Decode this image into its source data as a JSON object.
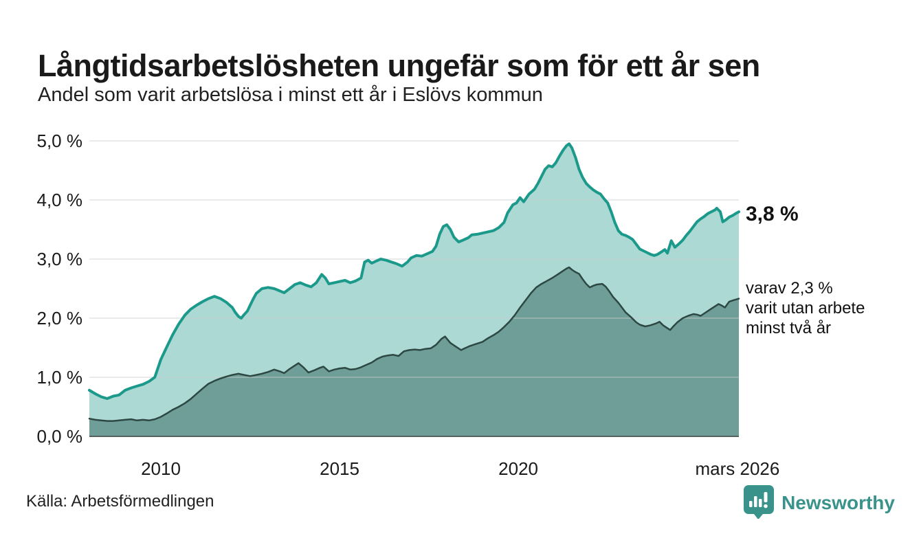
{
  "header": {
    "title": "Långtidsarbetslösheten ungefär som för ett år sen",
    "subtitle": "Andel som varit arbetslösa i minst ett år i Eslövs kommun"
  },
  "annotations": {
    "latest_total": "3,8 %",
    "secondary": [
      "varav 2,3 %",
      "varit utan arbete",
      "minst två år"
    ]
  },
  "footer": {
    "source": "Källa: Arbetsförmedlingen",
    "brand": "Newsworthy"
  },
  "colors": {
    "total_line": "#1b998b",
    "total_fill": "#acd9d3",
    "secondary_line": "#2d4843",
    "secondary_fill": "#6f9d97",
    "gridline": "#c9ced1",
    "axis_line": "#55615e",
    "text": "#1a1a1a",
    "brand_teal": "#3a938b"
  },
  "chart_data": {
    "type": "area",
    "title": "Långtidsarbetslösheten ungefär som för ett år sen",
    "subtitle": "Andel som varit arbetslösa i minst ett år i Eslövs kommun",
    "xlabel": "",
    "ylabel": "",
    "xlim": [
      2008.0,
      2026.17
    ],
    "ylim": [
      0,
      5
    ],
    "grid": true,
    "legend_position": "right-annotations",
    "x_ticks": [
      {
        "year": 2010,
        "label": "2010"
      },
      {
        "year": 2015,
        "label": "2015"
      },
      {
        "year": 2020,
        "label": "2020"
      },
      {
        "year": 2026.13,
        "label": "mars 2026"
      }
    ],
    "y_ticks": [
      {
        "value": 0,
        "label": "0,0 %"
      },
      {
        "value": 1,
        "label": "1,0 %"
      },
      {
        "value": 2,
        "label": "2,0 %"
      },
      {
        "value": 3,
        "label": "3,0 %"
      },
      {
        "value": 4,
        "label": "4,0 %"
      },
      {
        "value": 5,
        "label": "5,0 %"
      }
    ],
    "series": [
      {
        "name": "Andel arbetslösa minst ett år",
        "latest_value_label": "3,8 %",
        "line_color": "#1b998b",
        "fill_color": "#acd9d3",
        "line_width": 4,
        "points": [
          [
            2008.0,
            0.78
          ],
          [
            2008.17,
            0.72
          ],
          [
            2008.33,
            0.67
          ],
          [
            2008.5,
            0.64
          ],
          [
            2008.67,
            0.68
          ],
          [
            2008.83,
            0.7
          ],
          [
            2009.0,
            0.78
          ],
          [
            2009.17,
            0.82
          ],
          [
            2009.33,
            0.85
          ],
          [
            2009.5,
            0.88
          ],
          [
            2009.67,
            0.93
          ],
          [
            2009.83,
            1.0
          ],
          [
            2010.0,
            1.3
          ],
          [
            2010.17,
            1.52
          ],
          [
            2010.33,
            1.72
          ],
          [
            2010.5,
            1.9
          ],
          [
            2010.67,
            2.05
          ],
          [
            2010.83,
            2.15
          ],
          [
            2011.0,
            2.22
          ],
          [
            2011.17,
            2.28
          ],
          [
            2011.33,
            2.33
          ],
          [
            2011.5,
            2.37
          ],
          [
            2011.67,
            2.33
          ],
          [
            2011.83,
            2.27
          ],
          [
            2012.0,
            2.18
          ],
          [
            2012.08,
            2.1
          ],
          [
            2012.17,
            2.03
          ],
          [
            2012.25,
            2.0
          ],
          [
            2012.33,
            2.06
          ],
          [
            2012.42,
            2.12
          ],
          [
            2012.5,
            2.22
          ],
          [
            2012.58,
            2.32
          ],
          [
            2012.67,
            2.42
          ],
          [
            2012.83,
            2.5
          ],
          [
            2013.0,
            2.52
          ],
          [
            2013.17,
            2.5
          ],
          [
            2013.33,
            2.46
          ],
          [
            2013.45,
            2.43
          ],
          [
            2013.58,
            2.49
          ],
          [
            2013.75,
            2.57
          ],
          [
            2013.9,
            2.6
          ],
          [
            2014.05,
            2.56
          ],
          [
            2014.2,
            2.53
          ],
          [
            2014.35,
            2.6
          ],
          [
            2014.5,
            2.74
          ],
          [
            2014.6,
            2.68
          ],
          [
            2014.7,
            2.58
          ],
          [
            2014.85,
            2.6
          ],
          [
            2015.0,
            2.62
          ],
          [
            2015.15,
            2.64
          ],
          [
            2015.3,
            2.6
          ],
          [
            2015.45,
            2.63
          ],
          [
            2015.6,
            2.68
          ],
          [
            2015.7,
            2.95
          ],
          [
            2015.8,
            2.98
          ],
          [
            2015.9,
            2.93
          ],
          [
            2016.0,
            2.96
          ],
          [
            2016.15,
            3.0
          ],
          [
            2016.3,
            2.98
          ],
          [
            2016.45,
            2.95
          ],
          [
            2016.6,
            2.92
          ],
          [
            2016.75,
            2.88
          ],
          [
            2016.9,
            2.95
          ],
          [
            2017.0,
            3.02
          ],
          [
            2017.15,
            3.06
          ],
          [
            2017.3,
            3.05
          ],
          [
            2017.45,
            3.09
          ],
          [
            2017.6,
            3.13
          ],
          [
            2017.7,
            3.22
          ],
          [
            2017.8,
            3.42
          ],
          [
            2017.9,
            3.55
          ],
          [
            2018.0,
            3.58
          ],
          [
            2018.1,
            3.5
          ],
          [
            2018.2,
            3.37
          ],
          [
            2018.33,
            3.29
          ],
          [
            2018.45,
            3.32
          ],
          [
            2018.6,
            3.36
          ],
          [
            2018.7,
            3.41
          ],
          [
            2018.85,
            3.42
          ],
          [
            2019.0,
            3.44
          ],
          [
            2019.15,
            3.46
          ],
          [
            2019.3,
            3.48
          ],
          [
            2019.45,
            3.53
          ],
          [
            2019.6,
            3.62
          ],
          [
            2019.7,
            3.78
          ],
          [
            2019.85,
            3.92
          ],
          [
            2019.95,
            3.95
          ],
          [
            2020.05,
            4.04
          ],
          [
            2020.15,
            3.97
          ],
          [
            2020.3,
            4.1
          ],
          [
            2020.45,
            4.18
          ],
          [
            2020.55,
            4.28
          ],
          [
            2020.65,
            4.4
          ],
          [
            2020.75,
            4.52
          ],
          [
            2020.85,
            4.58
          ],
          [
            2020.95,
            4.56
          ],
          [
            2021.05,
            4.63
          ],
          [
            2021.15,
            4.74
          ],
          [
            2021.25,
            4.84
          ],
          [
            2021.35,
            4.92
          ],
          [
            2021.42,
            4.95
          ],
          [
            2021.5,
            4.88
          ],
          [
            2021.6,
            4.72
          ],
          [
            2021.7,
            4.52
          ],
          [
            2021.8,
            4.38
          ],
          [
            2021.9,
            4.28
          ],
          [
            2022.0,
            4.22
          ],
          [
            2022.1,
            4.17
          ],
          [
            2022.2,
            4.13
          ],
          [
            2022.3,
            4.1
          ],
          [
            2022.4,
            4.02
          ],
          [
            2022.5,
            3.95
          ],
          [
            2022.6,
            3.8
          ],
          [
            2022.7,
            3.62
          ],
          [
            2022.8,
            3.48
          ],
          [
            2022.9,
            3.42
          ],
          [
            2023.0,
            3.4
          ],
          [
            2023.1,
            3.37
          ],
          [
            2023.2,
            3.33
          ],
          [
            2023.3,
            3.25
          ],
          [
            2023.4,
            3.17
          ],
          [
            2023.5,
            3.14
          ],
          [
            2023.6,
            3.11
          ],
          [
            2023.7,
            3.08
          ],
          [
            2023.8,
            3.06
          ],
          [
            2023.9,
            3.08
          ],
          [
            2024.0,
            3.12
          ],
          [
            2024.1,
            3.16
          ],
          [
            2024.17,
            3.1
          ],
          [
            2024.28,
            3.31
          ],
          [
            2024.38,
            3.2
          ],
          [
            2024.5,
            3.26
          ],
          [
            2024.6,
            3.32
          ],
          [
            2024.7,
            3.4
          ],
          [
            2024.8,
            3.47
          ],
          [
            2024.9,
            3.55
          ],
          [
            2025.0,
            3.63
          ],
          [
            2025.1,
            3.68
          ],
          [
            2025.2,
            3.72
          ],
          [
            2025.3,
            3.77
          ],
          [
            2025.4,
            3.8
          ],
          [
            2025.5,
            3.83
          ],
          [
            2025.55,
            3.86
          ],
          [
            2025.65,
            3.8
          ],
          [
            2025.72,
            3.63
          ],
          [
            2025.8,
            3.66
          ],
          [
            2025.9,
            3.71
          ],
          [
            2026.0,
            3.74
          ],
          [
            2026.08,
            3.77
          ],
          [
            2026.17,
            3.8
          ]
        ]
      },
      {
        "name": "varav utan arbete minst två år",
        "latest_value_label": "2,3 %",
        "line_color": "#2d4843",
        "fill_color": "#6f9d97",
        "line_width": 2.5,
        "points": [
          [
            2008.0,
            0.3
          ],
          [
            2008.17,
            0.28
          ],
          [
            2008.33,
            0.27
          ],
          [
            2008.5,
            0.26
          ],
          [
            2008.67,
            0.26
          ],
          [
            2008.83,
            0.27
          ],
          [
            2009.0,
            0.28
          ],
          [
            2009.17,
            0.29
          ],
          [
            2009.33,
            0.27
          ],
          [
            2009.5,
            0.28
          ],
          [
            2009.67,
            0.27
          ],
          [
            2009.83,
            0.29
          ],
          [
            2010.0,
            0.33
          ],
          [
            2010.17,
            0.39
          ],
          [
            2010.33,
            0.45
          ],
          [
            2010.5,
            0.5
          ],
          [
            2010.67,
            0.56
          ],
          [
            2010.83,
            0.63
          ],
          [
            2011.0,
            0.72
          ],
          [
            2011.17,
            0.81
          ],
          [
            2011.33,
            0.89
          ],
          [
            2011.5,
            0.94
          ],
          [
            2011.67,
            0.98
          ],
          [
            2011.83,
            1.01
          ],
          [
            2012.0,
            1.04
          ],
          [
            2012.17,
            1.06
          ],
          [
            2012.33,
            1.04
          ],
          [
            2012.5,
            1.02
          ],
          [
            2012.67,
            1.04
          ],
          [
            2012.83,
            1.06
          ],
          [
            2013.0,
            1.09
          ],
          [
            2013.17,
            1.13
          ],
          [
            2013.33,
            1.1
          ],
          [
            2013.45,
            1.07
          ],
          [
            2013.6,
            1.14
          ],
          [
            2013.75,
            1.2
          ],
          [
            2013.85,
            1.24
          ],
          [
            2014.0,
            1.16
          ],
          [
            2014.13,
            1.08
          ],
          [
            2014.3,
            1.12
          ],
          [
            2014.45,
            1.16
          ],
          [
            2014.55,
            1.18
          ],
          [
            2014.7,
            1.1
          ],
          [
            2014.85,
            1.13
          ],
          [
            2015.0,
            1.15
          ],
          [
            2015.15,
            1.16
          ],
          [
            2015.3,
            1.13
          ],
          [
            2015.45,
            1.14
          ],
          [
            2015.6,
            1.17
          ],
          [
            2015.75,
            1.21
          ],
          [
            2015.9,
            1.25
          ],
          [
            2016.05,
            1.31
          ],
          [
            2016.2,
            1.35
          ],
          [
            2016.35,
            1.37
          ],
          [
            2016.5,
            1.38
          ],
          [
            2016.65,
            1.36
          ],
          [
            2016.8,
            1.44
          ],
          [
            2016.95,
            1.46
          ],
          [
            2017.1,
            1.47
          ],
          [
            2017.25,
            1.46
          ],
          [
            2017.4,
            1.48
          ],
          [
            2017.55,
            1.49
          ],
          [
            2017.7,
            1.55
          ],
          [
            2017.85,
            1.65
          ],
          [
            2017.95,
            1.69
          ],
          [
            2018.1,
            1.58
          ],
          [
            2018.25,
            1.52
          ],
          [
            2018.4,
            1.46
          ],
          [
            2018.5,
            1.49
          ],
          [
            2018.65,
            1.53
          ],
          [
            2018.8,
            1.56
          ],
          [
            2019.0,
            1.6
          ],
          [
            2019.15,
            1.66
          ],
          [
            2019.3,
            1.71
          ],
          [
            2019.45,
            1.77
          ],
          [
            2019.6,
            1.85
          ],
          [
            2019.75,
            1.94
          ],
          [
            2019.9,
            2.05
          ],
          [
            2020.05,
            2.18
          ],
          [
            2020.2,
            2.3
          ],
          [
            2020.35,
            2.42
          ],
          [
            2020.5,
            2.52
          ],
          [
            2020.65,
            2.58
          ],
          [
            2020.8,
            2.63
          ],
          [
            2020.95,
            2.68
          ],
          [
            2021.1,
            2.74
          ],
          [
            2021.25,
            2.8
          ],
          [
            2021.35,
            2.84
          ],
          [
            2021.42,
            2.86
          ],
          [
            2021.5,
            2.82
          ],
          [
            2021.6,
            2.78
          ],
          [
            2021.7,
            2.75
          ],
          [
            2021.8,
            2.66
          ],
          [
            2021.9,
            2.58
          ],
          [
            2022.0,
            2.52
          ],
          [
            2022.1,
            2.55
          ],
          [
            2022.2,
            2.57
          ],
          [
            2022.35,
            2.58
          ],
          [
            2022.45,
            2.53
          ],
          [
            2022.55,
            2.45
          ],
          [
            2022.65,
            2.36
          ],
          [
            2022.8,
            2.26
          ],
          [
            2022.9,
            2.18
          ],
          [
            2023.0,
            2.1
          ],
          [
            2023.15,
            2.02
          ],
          [
            2023.3,
            1.93
          ],
          [
            2023.4,
            1.89
          ],
          [
            2023.55,
            1.86
          ],
          [
            2023.7,
            1.88
          ],
          [
            2023.85,
            1.91
          ],
          [
            2023.95,
            1.94
          ],
          [
            2024.05,
            1.88
          ],
          [
            2024.15,
            1.84
          ],
          [
            2024.25,
            1.8
          ],
          [
            2024.35,
            1.87
          ],
          [
            2024.45,
            1.93
          ],
          [
            2024.6,
            2.0
          ],
          [
            2024.75,
            2.04
          ],
          [
            2024.9,
            2.07
          ],
          [
            2025.0,
            2.06
          ],
          [
            2025.1,
            2.04
          ],
          [
            2025.2,
            2.08
          ],
          [
            2025.3,
            2.12
          ],
          [
            2025.4,
            2.16
          ],
          [
            2025.5,
            2.2
          ],
          [
            2025.6,
            2.24
          ],
          [
            2025.7,
            2.21
          ],
          [
            2025.78,
            2.18
          ],
          [
            2025.9,
            2.28
          ],
          [
            2026.0,
            2.3
          ],
          [
            2026.17,
            2.33
          ]
        ]
      }
    ]
  }
}
